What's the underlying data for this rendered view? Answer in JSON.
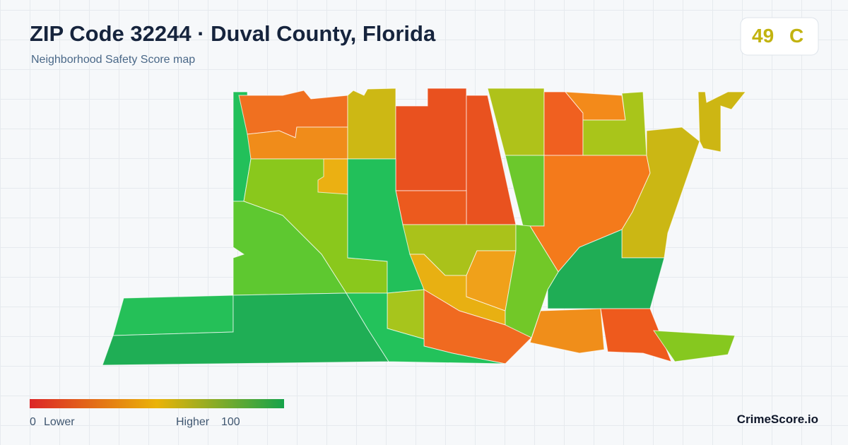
{
  "header": {
    "title": "ZIP Code 32244 · Duval County, Florida",
    "subtitle": "Neighborhood Safety Score map"
  },
  "score": {
    "value": 49,
    "grade": "C"
  },
  "legend": {
    "min": "0",
    "min_label": "Lower",
    "max_label": "Higher",
    "max": "100"
  },
  "brand": "CrimeScore.io"
}
